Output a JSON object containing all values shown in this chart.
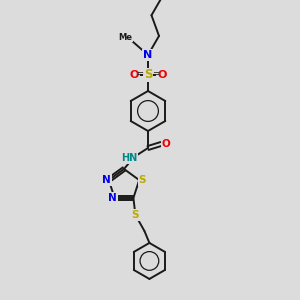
{
  "background_color": "#dcdcdc",
  "bond_color": "#1a1a1a",
  "colors": {
    "N": "#0000ee",
    "S": "#bbaa00",
    "O": "#ee0000",
    "H": "#008888",
    "C": "#1a1a1a"
  },
  "figsize": [
    3.0,
    3.0
  ],
  "dpi": 100
}
